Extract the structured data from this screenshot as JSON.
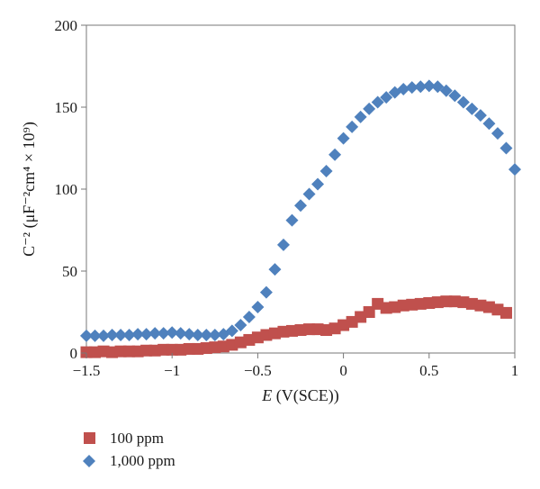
{
  "chart_data": {
    "type": "scatter",
    "title": "",
    "xlabel_italic": "E",
    "xlabel_rest": " (V(SCE))",
    "ylabel": "C⁻² (μF⁻²cm⁴ × 10⁹)",
    "xlim": [
      -1.5,
      1
    ],
    "ylim": [
      0,
      200
    ],
    "x_ticks": [
      -1.5,
      -1,
      -0.5,
      0,
      0.5,
      1
    ],
    "x_tick_labels": [
      "−1.5",
      "−1",
      "−0.5",
      "0",
      "0.5",
      "1"
    ],
    "y_ticks": [
      0,
      50,
      100,
      150,
      200
    ],
    "y_tick_labels": [
      "0",
      "50",
      "100",
      "150",
      "200"
    ],
    "grid": false,
    "legend_position": "bottom-left",
    "series": [
      {
        "name": "100 ppm",
        "marker": "square",
        "color": "#c0504d",
        "x": [
          -1.5,
          -1.45,
          -1.4,
          -1.35,
          -1.3,
          -1.25,
          -1.2,
          -1.15,
          -1.1,
          -1.05,
          -1.0,
          -0.95,
          -0.9,
          -0.85,
          -0.8,
          -0.75,
          -0.7,
          -0.65,
          -0.6,
          -0.55,
          -0.5,
          -0.45,
          -0.4,
          -0.35,
          -0.3,
          -0.25,
          -0.2,
          -0.15,
          -0.1,
          -0.05,
          0.0,
          0.05,
          0.1,
          0.15,
          0.2,
          0.25,
          0.3,
          0.35,
          0.4,
          0.45,
          0.5,
          0.55,
          0.6,
          0.65,
          0.7,
          0.75,
          0.8,
          0.85,
          0.9,
          0.95
        ],
        "y": [
          0.5,
          0.5,
          1.0,
          0.5,
          1.0,
          1.0,
          1.0,
          1.5,
          1.5,
          2.0,
          2.0,
          2.0,
          2.5,
          2.5,
          3.0,
          3.5,
          4.0,
          5.0,
          6.5,
          8.0,
          9.5,
          11.0,
          12.0,
          13.0,
          13.5,
          14.0,
          14.5,
          14.5,
          14.0,
          15.0,
          17.0,
          19.0,
          22.0,
          25.0,
          30.0,
          27.5,
          28.0,
          29.0,
          29.5,
          30.0,
          30.5,
          31.0,
          31.5,
          31.5,
          31.0,
          30.0,
          29.0,
          28.0,
          26.5,
          24.5
        ]
      },
      {
        "name": "1,000 ppm",
        "marker": "diamond",
        "color": "#4f81bd",
        "x": [
          -1.5,
          -1.45,
          -1.4,
          -1.35,
          -1.3,
          -1.25,
          -1.2,
          -1.15,
          -1.1,
          -1.05,
          -1.0,
          -0.95,
          -0.9,
          -0.85,
          -0.8,
          -0.75,
          -0.7,
          -0.65,
          -0.6,
          -0.55,
          -0.5,
          -0.45,
          -0.4,
          -0.35,
          -0.3,
          -0.25,
          -0.2,
          -0.15,
          -0.1,
          -0.05,
          0.0,
          0.05,
          0.1,
          0.15,
          0.2,
          0.25,
          0.3,
          0.35,
          0.4,
          0.45,
          0.5,
          0.55,
          0.6,
          0.65,
          0.7,
          0.75,
          0.8,
          0.85,
          0.9,
          0.95,
          1.0
        ],
        "y": [
          10.5,
          10.5,
          10.5,
          11.0,
          11.0,
          11.0,
          11.5,
          11.5,
          12.0,
          12.0,
          12.5,
          12.0,
          11.5,
          11.0,
          11.0,
          11.0,
          11.5,
          13.5,
          17.0,
          22.0,
          28.0,
          37.0,
          51.0,
          66.0,
          81.0,
          90.0,
          97.0,
          103.0,
          111.0,
          121.0,
          131.0,
          138.0,
          144.0,
          149.0,
          153.0,
          156.0,
          159.0,
          161.0,
          162.0,
          162.5,
          163.0,
          162.5,
          160.0,
          157.0,
          153.0,
          149.0,
          145.0,
          140.0,
          134.0,
          125.0,
          112.0
        ]
      }
    ]
  }
}
